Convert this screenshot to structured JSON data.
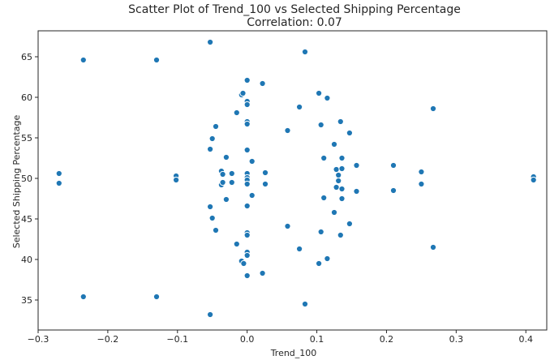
{
  "chart_data": {
    "type": "scatter",
    "title": "Scatter Plot of Trend_100 vs Selected Shipping Percentage",
    "subtitle": "Correlation: 0.07",
    "xlabel": "Trend_100",
    "ylabel": "Selected Shipping Percentage",
    "xlim": [
      -0.3,
      0.43
    ],
    "ylim": [
      31.3,
      68.2
    ],
    "grid": false,
    "color": "#1f77b4",
    "xticks": [
      -0.3,
      -0.2,
      -0.1,
      0.0,
      0.1,
      0.2,
      0.3,
      0.4
    ],
    "xtick_labels": [
      "−0.3",
      "−0.2",
      "−0.1",
      "0.0",
      "0.1",
      "0.2",
      "0.3",
      "0.4"
    ],
    "yticks": [
      35,
      40,
      45,
      50,
      55,
      60,
      65
    ],
    "ytick_labels": [
      "35",
      "40",
      "45",
      "50",
      "55",
      "60",
      "65"
    ],
    "points": [
      {
        "x": -0.27,
        "y": 50.6
      },
      {
        "x": -0.27,
        "y": 49.4
      },
      {
        "x": -0.235,
        "y": 64.6
      },
      {
        "x": -0.235,
        "y": 35.4
      },
      {
        "x": -0.13,
        "y": 64.6
      },
      {
        "x": -0.13,
        "y": 35.4
      },
      {
        "x": -0.102,
        "y": 50.3
      },
      {
        "x": -0.102,
        "y": 49.8
      },
      {
        "x": -0.053,
        "y": 66.8
      },
      {
        "x": -0.053,
        "y": 33.2
      },
      {
        "x": -0.053,
        "y": 53.6
      },
      {
        "x": -0.053,
        "y": 46.5
      },
      {
        "x": -0.05,
        "y": 54.9
      },
      {
        "x": -0.05,
        "y": 45.1
      },
      {
        "x": -0.045,
        "y": 56.4
      },
      {
        "x": -0.045,
        "y": 43.6
      },
      {
        "x": -0.037,
        "y": 50.9
      },
      {
        "x": -0.035,
        "y": 50.5
      },
      {
        "x": -0.037,
        "y": 49.2
      },
      {
        "x": -0.035,
        "y": 49.5
      },
      {
        "x": -0.03,
        "y": 52.6
      },
      {
        "x": -0.03,
        "y": 47.4
      },
      {
        "x": -0.022,
        "y": 50.6
      },
      {
        "x": -0.022,
        "y": 49.5
      },
      {
        "x": -0.015,
        "y": 58.1
      },
      {
        "x": -0.015,
        "y": 41.9
      },
      {
        "x": -0.008,
        "y": 60.3
      },
      {
        "x": -0.006,
        "y": 60.5
      },
      {
        "x": -0.008,
        "y": 39.8
      },
      {
        "x": -0.005,
        "y": 39.5
      },
      {
        "x": 0.0,
        "y": 62.1
      },
      {
        "x": 0.0,
        "y": 59.5
      },
      {
        "x": 0.0,
        "y": 59.1
      },
      {
        "x": 0.0,
        "y": 57.0
      },
      {
        "x": 0.0,
        "y": 56.7
      },
      {
        "x": 0.0,
        "y": 53.5
      },
      {
        "x": 0.0,
        "y": 50.6
      },
      {
        "x": 0.0,
        "y": 50.1
      },
      {
        "x": 0.0,
        "y": 49.8
      },
      {
        "x": 0.0,
        "y": 49.3
      },
      {
        "x": 0.0,
        "y": 46.6
      },
      {
        "x": 0.0,
        "y": 43.3
      },
      {
        "x": 0.0,
        "y": 43.0
      },
      {
        "x": 0.0,
        "y": 40.9
      },
      {
        "x": 0.0,
        "y": 40.5
      },
      {
        "x": 0.0,
        "y": 38.0
      },
      {
        "x": 0.007,
        "y": 52.1
      },
      {
        "x": 0.007,
        "y": 47.9
      },
      {
        "x": 0.022,
        "y": 61.7
      },
      {
        "x": 0.022,
        "y": 38.3
      },
      {
        "x": 0.026,
        "y": 50.7
      },
      {
        "x": 0.026,
        "y": 49.3
      },
      {
        "x": 0.058,
        "y": 55.9
      },
      {
        "x": 0.058,
        "y": 44.1
      },
      {
        "x": 0.075,
        "y": 58.8
      },
      {
        "x": 0.075,
        "y": 41.3
      },
      {
        "x": 0.083,
        "y": 65.6
      },
      {
        "x": 0.083,
        "y": 34.5
      },
      {
        "x": 0.103,
        "y": 60.5
      },
      {
        "x": 0.103,
        "y": 39.5
      },
      {
        "x": 0.106,
        "y": 56.6
      },
      {
        "x": 0.106,
        "y": 43.4
      },
      {
        "x": 0.11,
        "y": 52.5
      },
      {
        "x": 0.11,
        "y": 47.6
      },
      {
        "x": 0.115,
        "y": 59.9
      },
      {
        "x": 0.115,
        "y": 40.1
      },
      {
        "x": 0.125,
        "y": 54.2
      },
      {
        "x": 0.125,
        "y": 45.8
      },
      {
        "x": 0.128,
        "y": 51.1
      },
      {
        "x": 0.128,
        "y": 48.9
      },
      {
        "x": 0.131,
        "y": 50.4
      },
      {
        "x": 0.131,
        "y": 49.7
      },
      {
        "x": 0.134,
        "y": 57.0
      },
      {
        "x": 0.134,
        "y": 43.0
      },
      {
        "x": 0.136,
        "y": 52.5
      },
      {
        "x": 0.136,
        "y": 47.5
      },
      {
        "x": 0.136,
        "y": 51.2
      },
      {
        "x": 0.136,
        "y": 48.7
      },
      {
        "x": 0.147,
        "y": 55.6
      },
      {
        "x": 0.147,
        "y": 44.4
      },
      {
        "x": 0.157,
        "y": 51.6
      },
      {
        "x": 0.157,
        "y": 48.4
      },
      {
        "x": 0.21,
        "y": 51.6
      },
      {
        "x": 0.21,
        "y": 48.5
      },
      {
        "x": 0.25,
        "y": 50.8
      },
      {
        "x": 0.25,
        "y": 49.3
      },
      {
        "x": 0.267,
        "y": 58.6
      },
      {
        "x": 0.267,
        "y": 41.5
      },
      {
        "x": 0.411,
        "y": 50.2
      },
      {
        "x": 0.411,
        "y": 49.8
      }
    ]
  }
}
